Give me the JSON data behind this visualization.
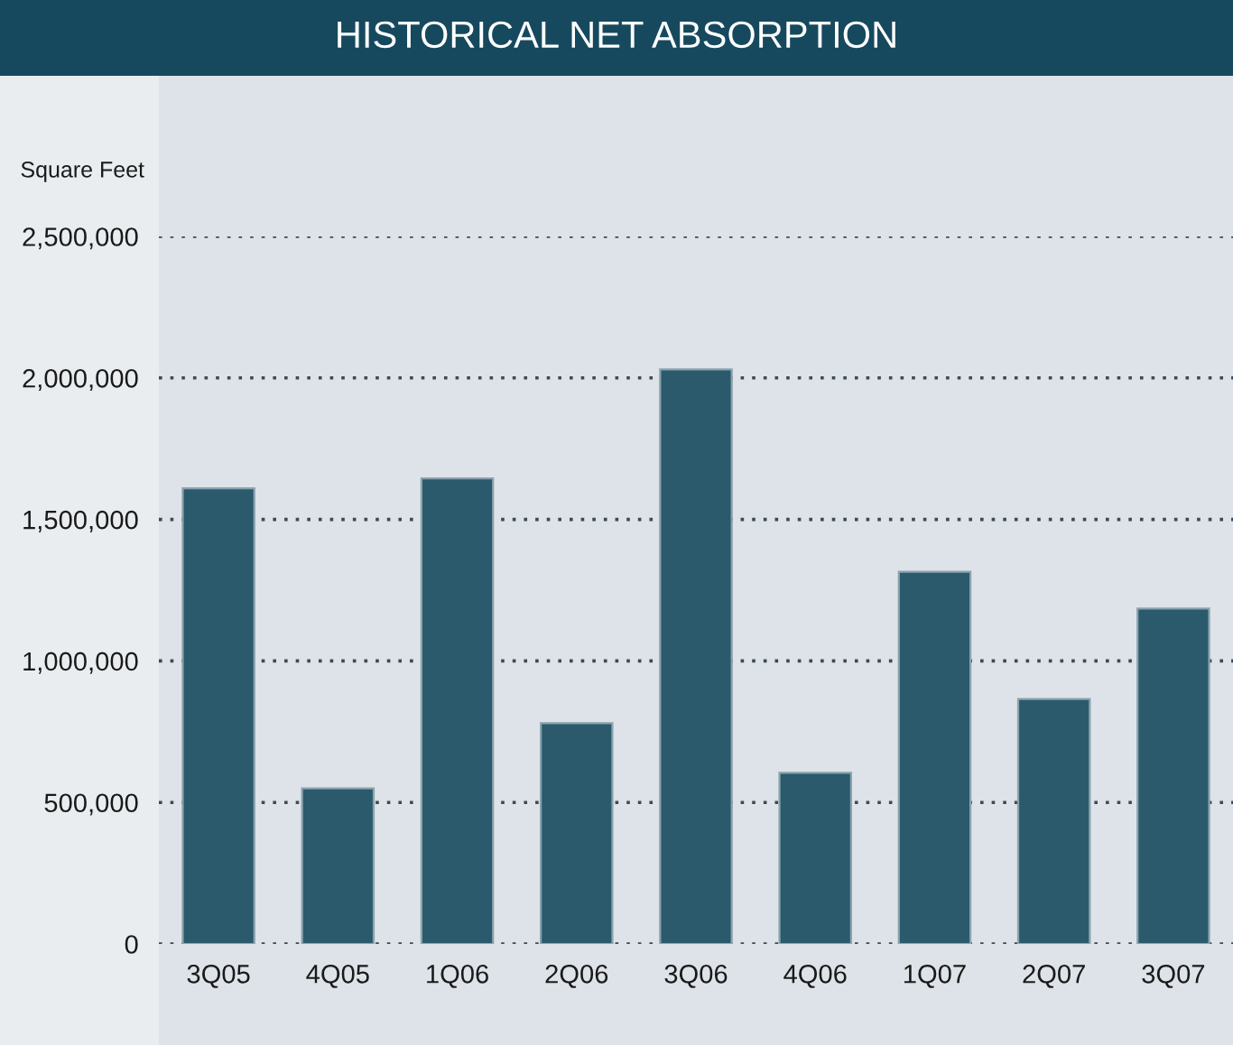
{
  "chart_data": {
    "type": "bar",
    "title": "HISTORICAL NET ABSORPTION",
    "ylabel": "Square Feet",
    "categories": [
      "3Q05",
      "4Q05",
      "1Q06",
      "2Q06",
      "3Q06",
      "4Q06",
      "1Q07",
      "2Q07",
      "3Q07"
    ],
    "values": [
      1610000,
      550000,
      1645000,
      780000,
      2030000,
      605000,
      1315000,
      865000,
      1185000
    ],
    "color": "#2b5a6c",
    "ylim": [
      0,
      2500000
    ],
    "yticks": [
      {
        "value": 0,
        "label": "0"
      },
      {
        "value": 500000,
        "label": "500,000"
      },
      {
        "value": 1000000,
        "label": "1,000,000"
      },
      {
        "value": 1500000,
        "label": "1,500,000"
      },
      {
        "value": 2000000,
        "label": "2,000,000"
      },
      {
        "value": 2500000,
        "label": "2,500,000"
      }
    ],
    "grid": "y"
  }
}
